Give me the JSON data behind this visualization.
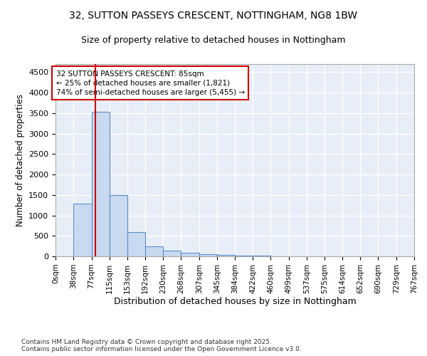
{
  "title": "32, SUTTON PASSEYS CRESCENT, NOTTINGHAM, NG8 1BW",
  "subtitle": "Size of property relative to detached houses in Nottingham",
  "xlabel": "Distribution of detached houses by size in Nottingham",
  "ylabel": "Number of detached properties",
  "bar_edges": [
    0,
    38,
    77,
    115,
    153,
    192,
    230,
    268,
    307,
    345,
    384,
    422,
    460,
    499,
    537,
    575,
    614,
    652,
    690,
    729,
    767
  ],
  "bar_heights": [
    5,
    1280,
    3530,
    1490,
    600,
    250,
    145,
    85,
    55,
    30,
    20,
    10,
    8,
    5,
    4,
    3,
    2,
    2,
    2,
    1
  ],
  "bar_color": "#c9d9f0",
  "bar_edge_color": "#5b8fc9",
  "red_line_x": 85,
  "red_line_color": "#cc0000",
  "annotation_text": "32 SUTTON PASSEYS CRESCENT: 85sqm\n← 25% of detached houses are smaller (1,821)\n74% of semi-detached houses are larger (5,455) →",
  "ylim": [
    0,
    4700
  ],
  "yticks": [
    0,
    500,
    1000,
    1500,
    2000,
    2500,
    3000,
    3500,
    4000,
    4500
  ],
  "xtick_labels": [
    "0sqm",
    "38sqm",
    "77sqm",
    "115sqm",
    "153sqm",
    "192sqm",
    "230sqm",
    "268sqm",
    "307sqm",
    "345sqm",
    "384sqm",
    "422sqm",
    "460sqm",
    "499sqm",
    "537sqm",
    "575sqm",
    "614sqm",
    "652sqm",
    "690sqm",
    "729sqm",
    "767sqm"
  ],
  "background_color": "#e8eef8",
  "grid_color": "#ffffff",
  "footer_text": "Contains HM Land Registry data © Crown copyright and database right 2025.\nContains public sector information licensed under the Open Government Licence v3.0.",
  "title_fontsize": 10,
  "subtitle_fontsize": 9,
  "xlabel_fontsize": 9,
  "ylabel_fontsize": 8.5,
  "annotation_fontsize": 7.5
}
